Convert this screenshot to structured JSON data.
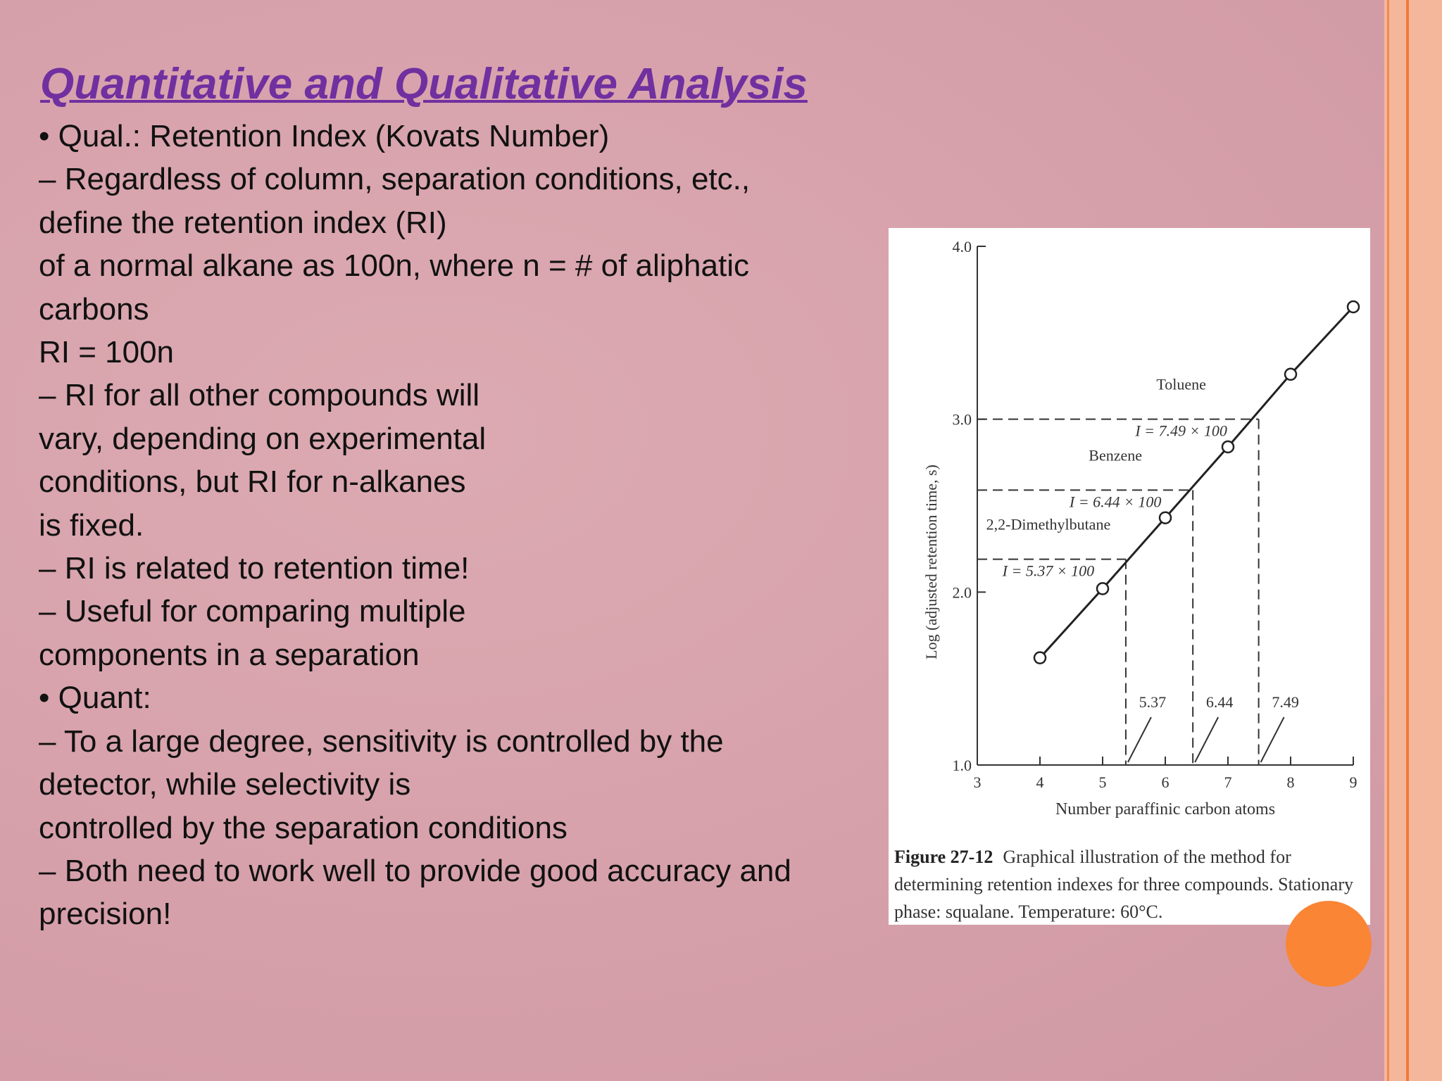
{
  "slide": {
    "title": "Quantitative and Qualitative Analysis",
    "lines": [
      "• Qual.: Retention Index (Kovats Number)",
      "– Regardless of column, separation conditions, etc.,",
      "define the retention index (RI)",
      "of a normal alkane as 100n, where n = # of aliphatic",
      "carbons",
      "RI = 100n",
      "– RI for all other compounds will",
      "vary, depending on experimental",
      "conditions, but RI for n-alkanes",
      "is fixed.",
      "– RI is related to retention time!",
      "– Useful for comparing multiple",
      "components in a separation",
      "• Quant:",
      "– To a large degree, sensitivity is controlled by the",
      "detector, while selectivity is",
      "controlled by the separation conditions",
      "– Both need to work well to provide good accuracy and",
      "precision!"
    ]
  },
  "figure": {
    "label": "Figure 27-12",
    "caption": "Graphical illustration of the method for determining retention indexes for three compounds. Stationary phase: squalane. Temperature: 60°C."
  },
  "chart_data": {
    "type": "line",
    "x_label": "Number paraffinic carbon atoms",
    "y_label": "Log (adjusted retention time, s)",
    "x": [
      4,
      5,
      6,
      7,
      8,
      9
    ],
    "series": [
      {
        "color": "#222222",
        "values": [
          1.62,
          2.02,
          2.43,
          2.84,
          3.26,
          3.65
        ]
      }
    ],
    "xlim": [
      3,
      9
    ],
    "xticks": [
      3,
      4,
      5,
      6,
      7,
      8,
      9
    ],
    "ylim": [
      1,
      4
    ],
    "yticks": [
      {
        "value": 1,
        "label": "1.0"
      },
      {
        "value": 2,
        "label": "2.0"
      },
      {
        "value": 3,
        "label": "3.0"
      },
      {
        "value": 4,
        "label": "4.0"
      }
    ],
    "annotations": [
      {
        "name": "2,2-Dimethylbutane",
        "formula": "I = 5.37 × 100",
        "x": 5.37,
        "y": 2.19
      },
      {
        "name": "Benzene",
        "formula": "I = 6.44 × 100",
        "x": 6.44,
        "y": 2.59
      },
      {
        "name": "Toluene",
        "formula": "I = 7.49 × 100",
        "x": 7.49,
        "y": 3.0
      }
    ]
  }
}
